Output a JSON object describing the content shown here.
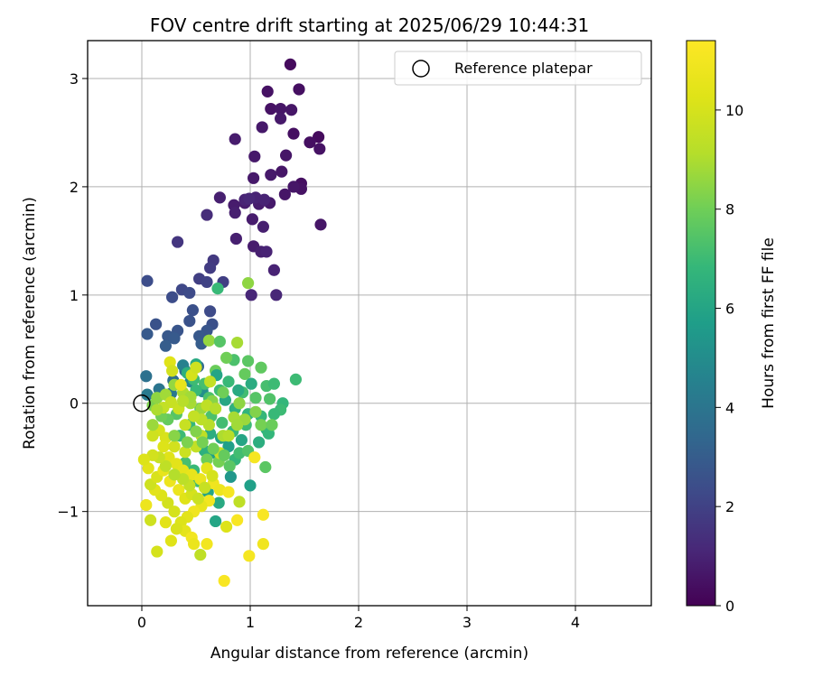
{
  "chart_data": {
    "type": "scatter",
    "title": "FOV centre drift starting at 2025/06/29 10:44:31",
    "xlabel": "Angular distance from reference (arcmin)",
    "ylabel": "Rotation from reference (arcmin)",
    "xlim": [
      -0.5,
      4.7
    ],
    "ylim": [
      -1.87,
      3.35
    ],
    "xticks": [
      0,
      1,
      2,
      3,
      4
    ],
    "yticks": [
      -1,
      0,
      1,
      2,
      3
    ],
    "grid": true,
    "legend": {
      "position": "top-right",
      "entries": [
        "Reference platepar"
      ]
    },
    "reference_point": {
      "x": 0,
      "y": 0
    },
    "colorbar": {
      "label": "Hours from first FF file",
      "range": [
        0,
        11.4
      ],
      "ticks": [
        0,
        2,
        4,
        6,
        8,
        10
      ],
      "colormap": "viridis"
    },
    "points_note": "x (arcmin), y (arcmin), c (hours)",
    "points": [
      [
        1.37,
        3.13,
        0.3
      ],
      [
        1.45,
        2.9,
        0.4
      ],
      [
        1.16,
        2.88,
        0.5
      ],
      [
        1.19,
        2.72,
        0.5
      ],
      [
        1.28,
        2.72,
        0.6
      ],
      [
        1.38,
        2.71,
        0.6
      ],
      [
        1.28,
        2.63,
        0.7
      ],
      [
        1.11,
        2.55,
        0.7
      ],
      [
        0.86,
        2.44,
        0.8
      ],
      [
        1.4,
        2.49,
        0.4
      ],
      [
        1.63,
        2.46,
        0.3
      ],
      [
        1.55,
        2.41,
        0.4
      ],
      [
        1.64,
        2.35,
        0.5
      ],
      [
        1.33,
        2.29,
        0.6
      ],
      [
        1.04,
        2.28,
        0.7
      ],
      [
        1.29,
        2.14,
        0.6
      ],
      [
        1.19,
        2.11,
        0.7
      ],
      [
        1.03,
        2.08,
        0.7
      ],
      [
        1.47,
        2.03,
        0.4
      ],
      [
        1.47,
        1.98,
        0.5
      ],
      [
        1.4,
        2.0,
        0.6
      ],
      [
        1.32,
        1.93,
        0.6
      ],
      [
        1.18,
        1.85,
        0.7
      ],
      [
        0.85,
        1.83,
        0.8
      ],
      [
        0.95,
        1.85,
        0.8
      ],
      [
        1.08,
        1.84,
        0.8
      ],
      [
        0.86,
        1.76,
        0.9
      ],
      [
        1.02,
        1.7,
        0.8
      ],
      [
        1.12,
        1.63,
        0.9
      ],
      [
        0.72,
        1.9,
        0.9
      ],
      [
        1.65,
        1.65,
        0.6
      ],
      [
        0.87,
        1.52,
        0.9
      ],
      [
        1.03,
        1.45,
        0.8
      ],
      [
        1.1,
        1.4,
        0.9
      ],
      [
        1.15,
        1.4,
        1.0
      ],
      [
        1.22,
        1.23,
        1.0
      ],
      [
        1.24,
        1.0,
        1.1
      ],
      [
        1.01,
        1.0,
        1.1
      ],
      [
        0.95,
        1.88,
        1.0
      ],
      [
        1.05,
        1.9,
        1.0
      ],
      [
        1.13,
        1.88,
        1.0
      ],
      [
        0.99,
        1.89,
        1.1
      ],
      [
        0.6,
        1.74,
        1.3
      ],
      [
        0.33,
        1.49,
        1.6
      ],
      [
        0.66,
        1.32,
        1.7
      ],
      [
        0.63,
        1.25,
        1.8
      ],
      [
        0.53,
        1.15,
        1.9
      ],
      [
        0.75,
        1.12,
        1.9
      ],
      [
        0.6,
        1.12,
        2.0
      ],
      [
        0.05,
        1.13,
        2.4
      ],
      [
        0.37,
        1.05,
        2.2
      ],
      [
        0.44,
        1.02,
        2.3
      ],
      [
        0.28,
        0.98,
        2.4
      ],
      [
        0.63,
        0.85,
        2.3
      ],
      [
        0.47,
        0.86,
        2.5
      ],
      [
        0.44,
        0.76,
        2.6
      ],
      [
        0.65,
        0.73,
        2.5
      ],
      [
        0.13,
        0.73,
        2.6
      ],
      [
        0.24,
        0.62,
        2.8
      ],
      [
        0.33,
        0.67,
        2.7
      ],
      [
        0.05,
        0.64,
        2.9
      ],
      [
        0.3,
        0.6,
        2.9
      ],
      [
        0.22,
        0.53,
        3.0
      ],
      [
        0.6,
        0.67,
        2.7
      ],
      [
        0.53,
        0.62,
        2.8
      ],
      [
        0.55,
        0.55,
        3.0
      ],
      [
        0.52,
        0.34,
        3.4
      ],
      [
        0.4,
        0.3,
        3.5
      ],
      [
        0.04,
        0.25,
        3.8
      ],
      [
        0.29,
        0.21,
        3.7
      ],
      [
        0.16,
        0.13,
        4.0
      ],
      [
        0.27,
        0.09,
        4.1
      ],
      [
        0.05,
        0.08,
        4.2
      ],
      [
        0.38,
        0.35,
        4.5
      ],
      [
        0.45,
        0.2,
        4.8
      ],
      [
        0.56,
        0.11,
        5.1
      ],
      [
        0.7,
        1.06,
        6.9
      ],
      [
        0.98,
        1.11,
        8.5
      ],
      [
        0.62,
        0.58,
        8.6
      ],
      [
        0.88,
        0.56,
        8.9
      ],
      [
        0.72,
        0.57,
        7.5
      ],
      [
        1.42,
        0.22,
        7.0
      ],
      [
        0.85,
        0.4,
        7.3
      ],
      [
        0.98,
        0.39,
        7.6
      ],
      [
        1.1,
        0.33,
        7.7
      ],
      [
        0.78,
        0.42,
        8.0
      ],
      [
        0.68,
        0.3,
        7.9
      ],
      [
        0.95,
        0.27,
        7.8
      ],
      [
        1.15,
        0.16,
        7.2
      ],
      [
        1.22,
        0.18,
        7.0
      ],
      [
        1.3,
        0.0,
        6.8
      ],
      [
        1.28,
        -0.06,
        7.0
      ],
      [
        0.8,
        0.2,
        6.9
      ],
      [
        0.93,
        0.1,
        7.1
      ],
      [
        1.05,
        0.05,
        7.5
      ],
      [
        1.18,
        0.04,
        7.4
      ],
      [
        0.72,
        0.12,
        7.0
      ],
      [
        0.62,
        0.05,
        7.3
      ],
      [
        0.58,
        0.18,
        7.2
      ],
      [
        0.5,
        0.12,
        6.9
      ],
      [
        0.86,
        -0.05,
        6.5
      ],
      [
        0.98,
        -0.1,
        6.7
      ],
      [
        1.1,
        -0.12,
        6.8
      ],
      [
        1.22,
        -0.1,
        6.9
      ],
      [
        1.15,
        -0.24,
        6.6
      ],
      [
        1.08,
        -0.36,
        6.4
      ],
      [
        1.17,
        -0.28,
        6.8
      ],
      [
        0.96,
        -0.2,
        7.0
      ],
      [
        0.84,
        -0.26,
        6.9
      ],
      [
        0.74,
        -0.18,
        7.1
      ],
      [
        0.64,
        -0.12,
        7.3
      ],
      [
        0.54,
        -0.05,
        7.4
      ],
      [
        0.48,
        0.22,
        7.0
      ],
      [
        0.42,
        0.28,
        6.5
      ],
      [
        0.5,
        0.36,
        6.2
      ],
      [
        0.69,
        0.26,
        6.0
      ],
      [
        0.77,
        0.03,
        6.1
      ],
      [
        0.89,
        0.12,
        6.2
      ],
      [
        1.01,
        0.18,
        6.3
      ],
      [
        0.92,
        -0.34,
        6.0
      ],
      [
        0.8,
        -0.4,
        5.8
      ],
      [
        0.68,
        -0.46,
        5.7
      ],
      [
        0.73,
        -0.32,
        5.9
      ],
      [
        0.63,
        -0.28,
        6.4
      ],
      [
        0.58,
        -0.44,
        6.5
      ],
      [
        0.86,
        -0.52,
        6.8
      ],
      [
        0.9,
        -0.46,
        7.1
      ],
      [
        0.98,
        -0.44,
        7.4
      ],
      [
        0.81,
        -0.58,
        7.6
      ],
      [
        0.71,
        -0.54,
        8.1
      ],
      [
        1.14,
        -0.59,
        7.6
      ],
      [
        0.6,
        -0.52,
        8.0
      ],
      [
        0.82,
        -0.68,
        5.4
      ],
      [
        0.61,
        -0.82,
        6.0
      ],
      [
        0.71,
        -0.92,
        6.2
      ],
      [
        1.0,
        -0.76,
        5.8
      ],
      [
        0.68,
        -1.09,
        6.0
      ],
      [
        0.52,
        -0.72,
        7.0
      ],
      [
        0.48,
        -0.62,
        6.9
      ],
      [
        0.4,
        -0.55,
        7.2
      ],
      [
        0.35,
        -0.3,
        7.0
      ],
      [
        0.44,
        -0.2,
        6.8
      ],
      [
        0.32,
        -0.1,
        7.5
      ],
      [
        0.24,
        -0.15,
        7.8
      ],
      [
        0.18,
        -0.12,
        8.0
      ],
      [
        0.1,
        -0.02,
        8.2
      ],
      [
        0.14,
        0.05,
        8.5
      ],
      [
        0.22,
        0.08,
        8.8
      ],
      [
        0.3,
        0.17,
        8.6
      ],
      [
        0.38,
        0.1,
        9.0
      ],
      [
        0.45,
        0.0,
        8.9
      ],
      [
        0.55,
        -0.05,
        8.7
      ],
      [
        0.65,
        0.02,
        8.4
      ],
      [
        0.75,
        0.1,
        8.0
      ],
      [
        0.9,
        0.0,
        8.5
      ],
      [
        1.05,
        -0.08,
        8.3
      ],
      [
        1.1,
        -0.2,
        8.1
      ],
      [
        1.2,
        -0.2,
        7.9
      ],
      [
        0.95,
        -0.15,
        8.7
      ],
      [
        0.85,
        -0.13,
        8.9
      ],
      [
        0.75,
        -0.3,
        9.0
      ],
      [
        0.62,
        -0.2,
        9.2
      ],
      [
        0.55,
        -0.3,
        9.4
      ],
      [
        0.5,
        -0.4,
        9.5
      ],
      [
        0.4,
        -0.45,
        9.7
      ],
      [
        0.3,
        -0.4,
        9.9
      ],
      [
        0.22,
        -0.32,
        10.1
      ],
      [
        0.16,
        -0.25,
        10.0
      ],
      [
        0.1,
        -0.3,
        9.8
      ],
      [
        0.2,
        -0.4,
        10.2
      ],
      [
        0.25,
        -0.5,
        10.3
      ],
      [
        0.32,
        -0.56,
        10.4
      ],
      [
        0.38,
        -0.62,
        10.5
      ],
      [
        0.46,
        -0.66,
        10.6
      ],
      [
        0.54,
        -0.7,
        10.7
      ],
      [
        0.6,
        -0.6,
        10.5
      ],
      [
        0.66,
        -0.74,
        10.9
      ],
      [
        0.72,
        -0.8,
        10.8
      ],
      [
        0.8,
        -0.82,
        11.1
      ],
      [
        0.62,
        -0.9,
        11.0
      ],
      [
        0.55,
        -0.95,
        10.6
      ],
      [
        0.48,
        -1.0,
        10.9
      ],
      [
        0.42,
        -1.05,
        10.4
      ],
      [
        0.36,
        -1.1,
        10.2
      ],
      [
        0.3,
        -1.0,
        10.0
      ],
      [
        0.24,
        -0.92,
        9.9
      ],
      [
        0.18,
        -0.85,
        10.2
      ],
      [
        0.12,
        -0.8,
        10.4
      ],
      [
        0.08,
        -0.75,
        9.8
      ],
      [
        0.14,
        -0.68,
        10.1
      ],
      [
        0.2,
        -0.62,
        10.6
      ],
      [
        0.26,
        -0.72,
        10.8
      ],
      [
        0.34,
        -0.8,
        10.7
      ],
      [
        0.4,
        -0.88,
        10.3
      ],
      [
        0.46,
        -0.84,
        10.0
      ],
      [
        0.52,
        -0.88,
        9.7
      ],
      [
        0.58,
        -0.78,
        9.6
      ],
      [
        0.44,
        -0.76,
        9.5
      ],
      [
        0.38,
        -0.7,
        9.3
      ],
      [
        0.3,
        -0.66,
        9.1
      ],
      [
        0.22,
        -0.58,
        9.4
      ],
      [
        0.16,
        -0.5,
        9.6
      ],
      [
        0.1,
        -0.48,
        9.9
      ],
      [
        0.06,
        -0.6,
        10.4
      ],
      [
        0.02,
        -0.52,
        10.2
      ],
      [
        0.04,
        -0.94,
        10.8
      ],
      [
        0.08,
        -1.08,
        9.8
      ],
      [
        0.14,
        -1.37,
        10.0
      ],
      [
        0.27,
        -1.27,
        10.3
      ],
      [
        0.4,
        -1.18,
        10.5
      ],
      [
        0.46,
        -1.24,
        11.0
      ],
      [
        0.48,
        -1.3,
        10.7
      ],
      [
        0.54,
        -1.4,
        9.4
      ],
      [
        0.6,
        -1.3,
        11.0
      ],
      [
        0.76,
        -1.64,
        11.2
      ],
      [
        0.99,
        -1.41,
        11.1
      ],
      [
        1.12,
        -1.3,
        10.9
      ],
      [
        1.12,
        -1.03,
        11.2
      ],
      [
        0.88,
        -1.08,
        11.2
      ],
      [
        0.78,
        -1.14,
        10.2
      ],
      [
        0.32,
        -1.16,
        10.1
      ],
      [
        0.22,
        -1.1,
        10.4
      ],
      [
        1.04,
        -0.5,
        11.1
      ],
      [
        0.9,
        -0.91,
        9.4
      ],
      [
        0.65,
        -0.67,
        10.0
      ],
      [
        0.72,
        -0.46,
        9.7
      ],
      [
        0.8,
        -0.3,
        9.2
      ],
      [
        0.88,
        -0.2,
        8.8
      ],
      [
        0.55,
        -0.15,
        9.3
      ],
      [
        0.48,
        -0.12,
        9.5
      ],
      [
        0.4,
        -0.2,
        9.6
      ],
      [
        0.34,
        -0.05,
        9.7
      ],
      [
        0.27,
        0.01,
        9.6
      ],
      [
        0.2,
        -0.04,
        9.5
      ],
      [
        0.26,
        0.38,
        10.3
      ],
      [
        0.28,
        0.3,
        9.9
      ],
      [
        0.36,
        0.17,
        10.6
      ],
      [
        0.46,
        0.26,
        10.0
      ],
      [
        0.5,
        0.33,
        9.8
      ],
      [
        0.63,
        0.2,
        9.5
      ],
      [
        0.6,
        -0.02,
        9.4
      ],
      [
        0.68,
        -0.05,
        9.1
      ],
      [
        0.45,
        0.06,
        8.8
      ],
      [
        0.38,
        0.02,
        9.2
      ],
      [
        0.14,
        -0.06,
        9.0
      ],
      [
        0.1,
        -0.2,
        8.7
      ],
      [
        0.3,
        -0.3,
        8.4
      ],
      [
        0.42,
        -0.36,
        8.2
      ],
      [
        0.5,
        -0.26,
        8.3
      ],
      [
        0.56,
        -0.36,
        8.1
      ],
      [
        0.66,
        -0.42,
        8.0
      ],
      [
        0.76,
        -0.48,
        7.8
      ]
    ]
  }
}
